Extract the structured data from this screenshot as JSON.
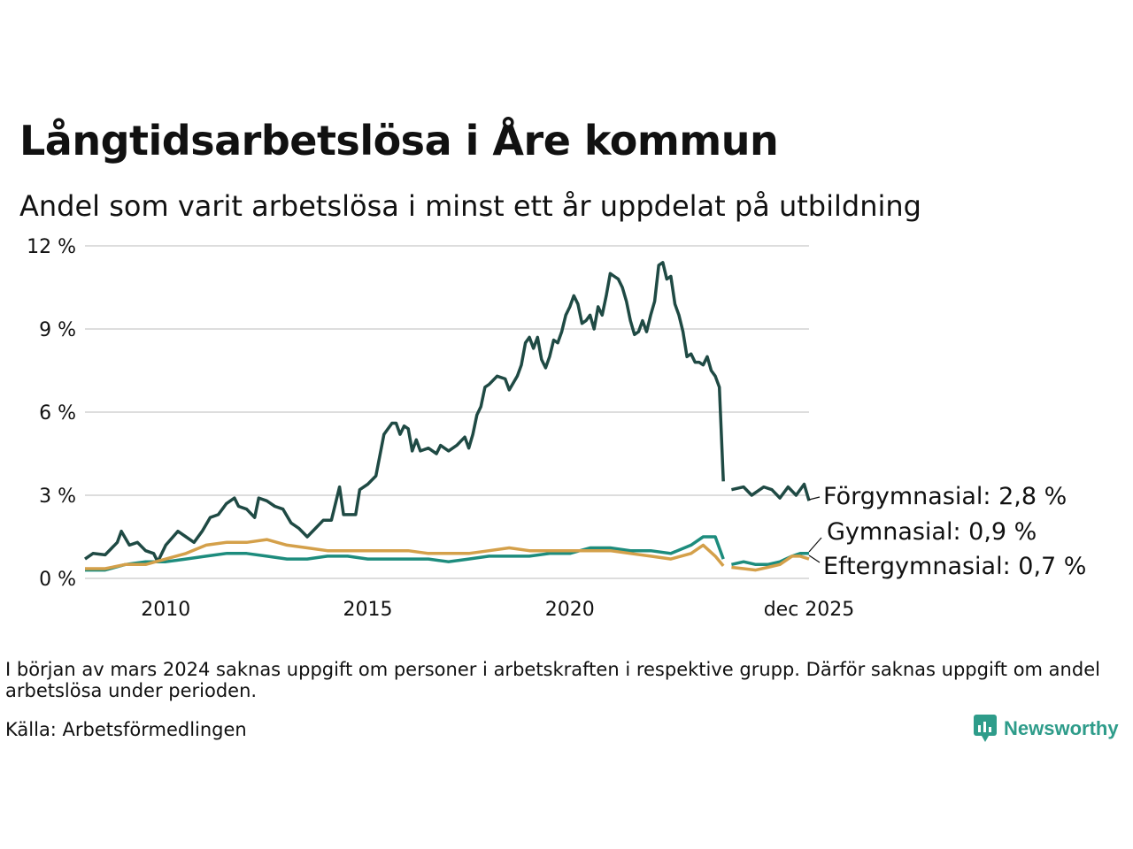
{
  "title": "Långtidsarbetslösa i Åre kommun",
  "subtitle": "Andel som varit arbetslösa i minst ett år uppdelat på utbildning",
  "note": "I början av mars 2024 saknas uppgift om personer i arbetskraften i respektive grupp. Därför saknas uppgift om andel arbetslösa under perioden.",
  "source": "Källa: Arbetsförmedlingen",
  "brand": "Newsworthy",
  "chart_data": {
    "type": "line",
    "title": "Långtidsarbetslösa i Åre kommun",
    "xlabel": "",
    "ylabel": "",
    "x_range": [
      2008.0,
      2025.92
    ],
    "ylim": [
      0,
      12
    ],
    "yticks": [
      0,
      3,
      6,
      9,
      12
    ],
    "ytick_labels": [
      "0 %",
      "3 %",
      "6 %",
      "9 %",
      "12 %"
    ],
    "xticks": [
      2010,
      2015,
      2020,
      2025.92
    ],
    "xtick_labels": [
      "2010",
      "2015",
      "2020",
      "dec 2025"
    ],
    "grid": true,
    "gap": [
      2023.8,
      2024.0
    ],
    "series": [
      {
        "name": "Förgymnasial",
        "color": "#1f4a44",
        "end_label": "Förgymnasial: 2,8 %",
        "points": [
          [
            2008.0,
            0.7
          ],
          [
            2008.2,
            0.9
          ],
          [
            2008.5,
            0.85
          ],
          [
            2008.8,
            1.3
          ],
          [
            2008.9,
            1.7
          ],
          [
            2009.1,
            1.2
          ],
          [
            2009.3,
            1.3
          ],
          [
            2009.5,
            1.0
          ],
          [
            2009.7,
            0.9
          ],
          [
            2009.8,
            0.6
          ],
          [
            2010.0,
            1.2
          ],
          [
            2010.3,
            1.7
          ],
          [
            2010.5,
            1.5
          ],
          [
            2010.7,
            1.3
          ],
          [
            2010.9,
            1.7
          ],
          [
            2011.1,
            2.2
          ],
          [
            2011.3,
            2.3
          ],
          [
            2011.5,
            2.7
          ],
          [
            2011.7,
            2.9
          ],
          [
            2011.8,
            2.6
          ],
          [
            2012.0,
            2.5
          ],
          [
            2012.2,
            2.2
          ],
          [
            2012.3,
            2.9
          ],
          [
            2012.5,
            2.8
          ],
          [
            2012.7,
            2.6
          ],
          [
            2012.9,
            2.5
          ],
          [
            2013.1,
            2.0
          ],
          [
            2013.3,
            1.8
          ],
          [
            2013.5,
            1.5
          ],
          [
            2013.7,
            1.8
          ],
          [
            2013.9,
            2.1
          ],
          [
            2014.1,
            2.1
          ],
          [
            2014.3,
            3.3
          ],
          [
            2014.4,
            2.3
          ],
          [
            2014.7,
            2.3
          ],
          [
            2014.8,
            3.2
          ],
          [
            2015.0,
            3.4
          ],
          [
            2015.2,
            3.7
          ],
          [
            2015.4,
            5.2
          ],
          [
            2015.6,
            5.6
          ],
          [
            2015.7,
            5.6
          ],
          [
            2015.8,
            5.2
          ],
          [
            2015.9,
            5.5
          ],
          [
            2016.0,
            5.4
          ],
          [
            2016.1,
            4.6
          ],
          [
            2016.2,
            5.0
          ],
          [
            2016.3,
            4.6
          ],
          [
            2016.5,
            4.7
          ],
          [
            2016.7,
            4.5
          ],
          [
            2016.8,
            4.8
          ],
          [
            2017.0,
            4.6
          ],
          [
            2017.2,
            4.8
          ],
          [
            2017.4,
            5.1
          ],
          [
            2017.5,
            4.7
          ],
          [
            2017.6,
            5.2
          ],
          [
            2017.7,
            5.9
          ],
          [
            2017.8,
            6.2
          ],
          [
            2017.9,
            6.9
          ],
          [
            2018.0,
            7.0
          ],
          [
            2018.2,
            7.3
          ],
          [
            2018.4,
            7.2
          ],
          [
            2018.5,
            6.8
          ],
          [
            2018.7,
            7.3
          ],
          [
            2018.8,
            7.7
          ],
          [
            2018.9,
            8.5
          ],
          [
            2019.0,
            8.7
          ],
          [
            2019.1,
            8.3
          ],
          [
            2019.2,
            8.7
          ],
          [
            2019.3,
            7.9
          ],
          [
            2019.4,
            7.6
          ],
          [
            2019.5,
            8.0
          ],
          [
            2019.6,
            8.6
          ],
          [
            2019.7,
            8.5
          ],
          [
            2019.8,
            8.9
          ],
          [
            2019.9,
            9.5
          ],
          [
            2020.0,
            9.8
          ],
          [
            2020.1,
            10.2
          ],
          [
            2020.2,
            9.9
          ],
          [
            2020.3,
            9.2
          ],
          [
            2020.4,
            9.3
          ],
          [
            2020.5,
            9.5
          ],
          [
            2020.6,
            9.0
          ],
          [
            2020.7,
            9.8
          ],
          [
            2020.8,
            9.5
          ],
          [
            2020.9,
            10.2
          ],
          [
            2021.0,
            11.0
          ],
          [
            2021.1,
            10.9
          ],
          [
            2021.2,
            10.8
          ],
          [
            2021.3,
            10.5
          ],
          [
            2021.4,
            10.0
          ],
          [
            2021.5,
            9.3
          ],
          [
            2021.6,
            8.8
          ],
          [
            2021.7,
            8.9
          ],
          [
            2021.8,
            9.3
          ],
          [
            2021.9,
            8.9
          ],
          [
            2022.0,
            9.5
          ],
          [
            2022.1,
            10.0
          ],
          [
            2022.2,
            11.3
          ],
          [
            2022.3,
            11.4
          ],
          [
            2022.4,
            10.8
          ],
          [
            2022.5,
            10.9
          ],
          [
            2022.6,
            9.9
          ],
          [
            2022.7,
            9.5
          ],
          [
            2022.8,
            8.9
          ],
          [
            2022.9,
            8.0
          ],
          [
            2023.0,
            8.1
          ],
          [
            2023.1,
            7.8
          ],
          [
            2023.2,
            7.8
          ],
          [
            2023.3,
            7.7
          ],
          [
            2023.4,
            8.0
          ],
          [
            2023.5,
            7.5
          ],
          [
            2023.6,
            7.3
          ],
          [
            2023.7,
            6.9
          ],
          [
            2023.8,
            3.5
          ]
        ]
      },
      {
        "name": "Gymnasial",
        "color": "#1d8c7d",
        "end_label": "Gymnasial: 0,9 %",
        "points": [
          [
            2008.0,
            0.3
          ],
          [
            2008.5,
            0.3
          ],
          [
            2009.0,
            0.5
          ],
          [
            2009.5,
            0.6
          ],
          [
            2010.0,
            0.6
          ],
          [
            2010.5,
            0.7
          ],
          [
            2011.0,
            0.8
          ],
          [
            2011.5,
            0.9
          ],
          [
            2012.0,
            0.9
          ],
          [
            2012.5,
            0.8
          ],
          [
            2013.0,
            0.7
          ],
          [
            2013.5,
            0.7
          ],
          [
            2014.0,
            0.8
          ],
          [
            2014.5,
            0.8
          ],
          [
            2015.0,
            0.7
          ],
          [
            2015.5,
            0.7
          ],
          [
            2016.0,
            0.7
          ],
          [
            2016.5,
            0.7
          ],
          [
            2017.0,
            0.6
          ],
          [
            2017.5,
            0.7
          ],
          [
            2018.0,
            0.8
          ],
          [
            2018.5,
            0.8
          ],
          [
            2019.0,
            0.8
          ],
          [
            2019.5,
            0.9
          ],
          [
            2020.0,
            0.9
          ],
          [
            2020.5,
            1.1
          ],
          [
            2021.0,
            1.1
          ],
          [
            2021.5,
            1.0
          ],
          [
            2022.0,
            1.0
          ],
          [
            2022.5,
            0.9
          ],
          [
            2023.0,
            1.2
          ],
          [
            2023.3,
            1.5
          ],
          [
            2023.6,
            1.5
          ],
          [
            2023.8,
            0.7
          ]
        ]
      },
      {
        "name": "Eftergymnasial",
        "color": "#d4a04a",
        "end_label": "Eftergymnasial: 0,7 %",
        "points": [
          [
            2008.0,
            0.35
          ],
          [
            2008.5,
            0.35
          ],
          [
            2009.0,
            0.5
          ],
          [
            2009.5,
            0.5
          ],
          [
            2010.0,
            0.7
          ],
          [
            2010.5,
            0.9
          ],
          [
            2011.0,
            1.2
          ],
          [
            2011.5,
            1.3
          ],
          [
            2012.0,
            1.3
          ],
          [
            2012.5,
            1.4
          ],
          [
            2013.0,
            1.2
          ],
          [
            2013.5,
            1.1
          ],
          [
            2014.0,
            1.0
          ],
          [
            2014.5,
            1.0
          ],
          [
            2015.0,
            1.0
          ],
          [
            2015.5,
            1.0
          ],
          [
            2016.0,
            1.0
          ],
          [
            2016.5,
            0.9
          ],
          [
            2017.0,
            0.9
          ],
          [
            2017.5,
            0.9
          ],
          [
            2018.0,
            1.0
          ],
          [
            2018.5,
            1.1
          ],
          [
            2019.0,
            1.0
          ],
          [
            2019.5,
            1.0
          ],
          [
            2020.0,
            1.0
          ],
          [
            2020.5,
            1.0
          ],
          [
            2021.0,
            1.0
          ],
          [
            2021.5,
            0.9
          ],
          [
            2022.0,
            0.8
          ],
          [
            2022.5,
            0.7
          ],
          [
            2023.0,
            0.9
          ],
          [
            2023.3,
            1.2
          ],
          [
            2023.6,
            0.8
          ],
          [
            2023.8,
            0.45
          ]
        ]
      }
    ]
  }
}
